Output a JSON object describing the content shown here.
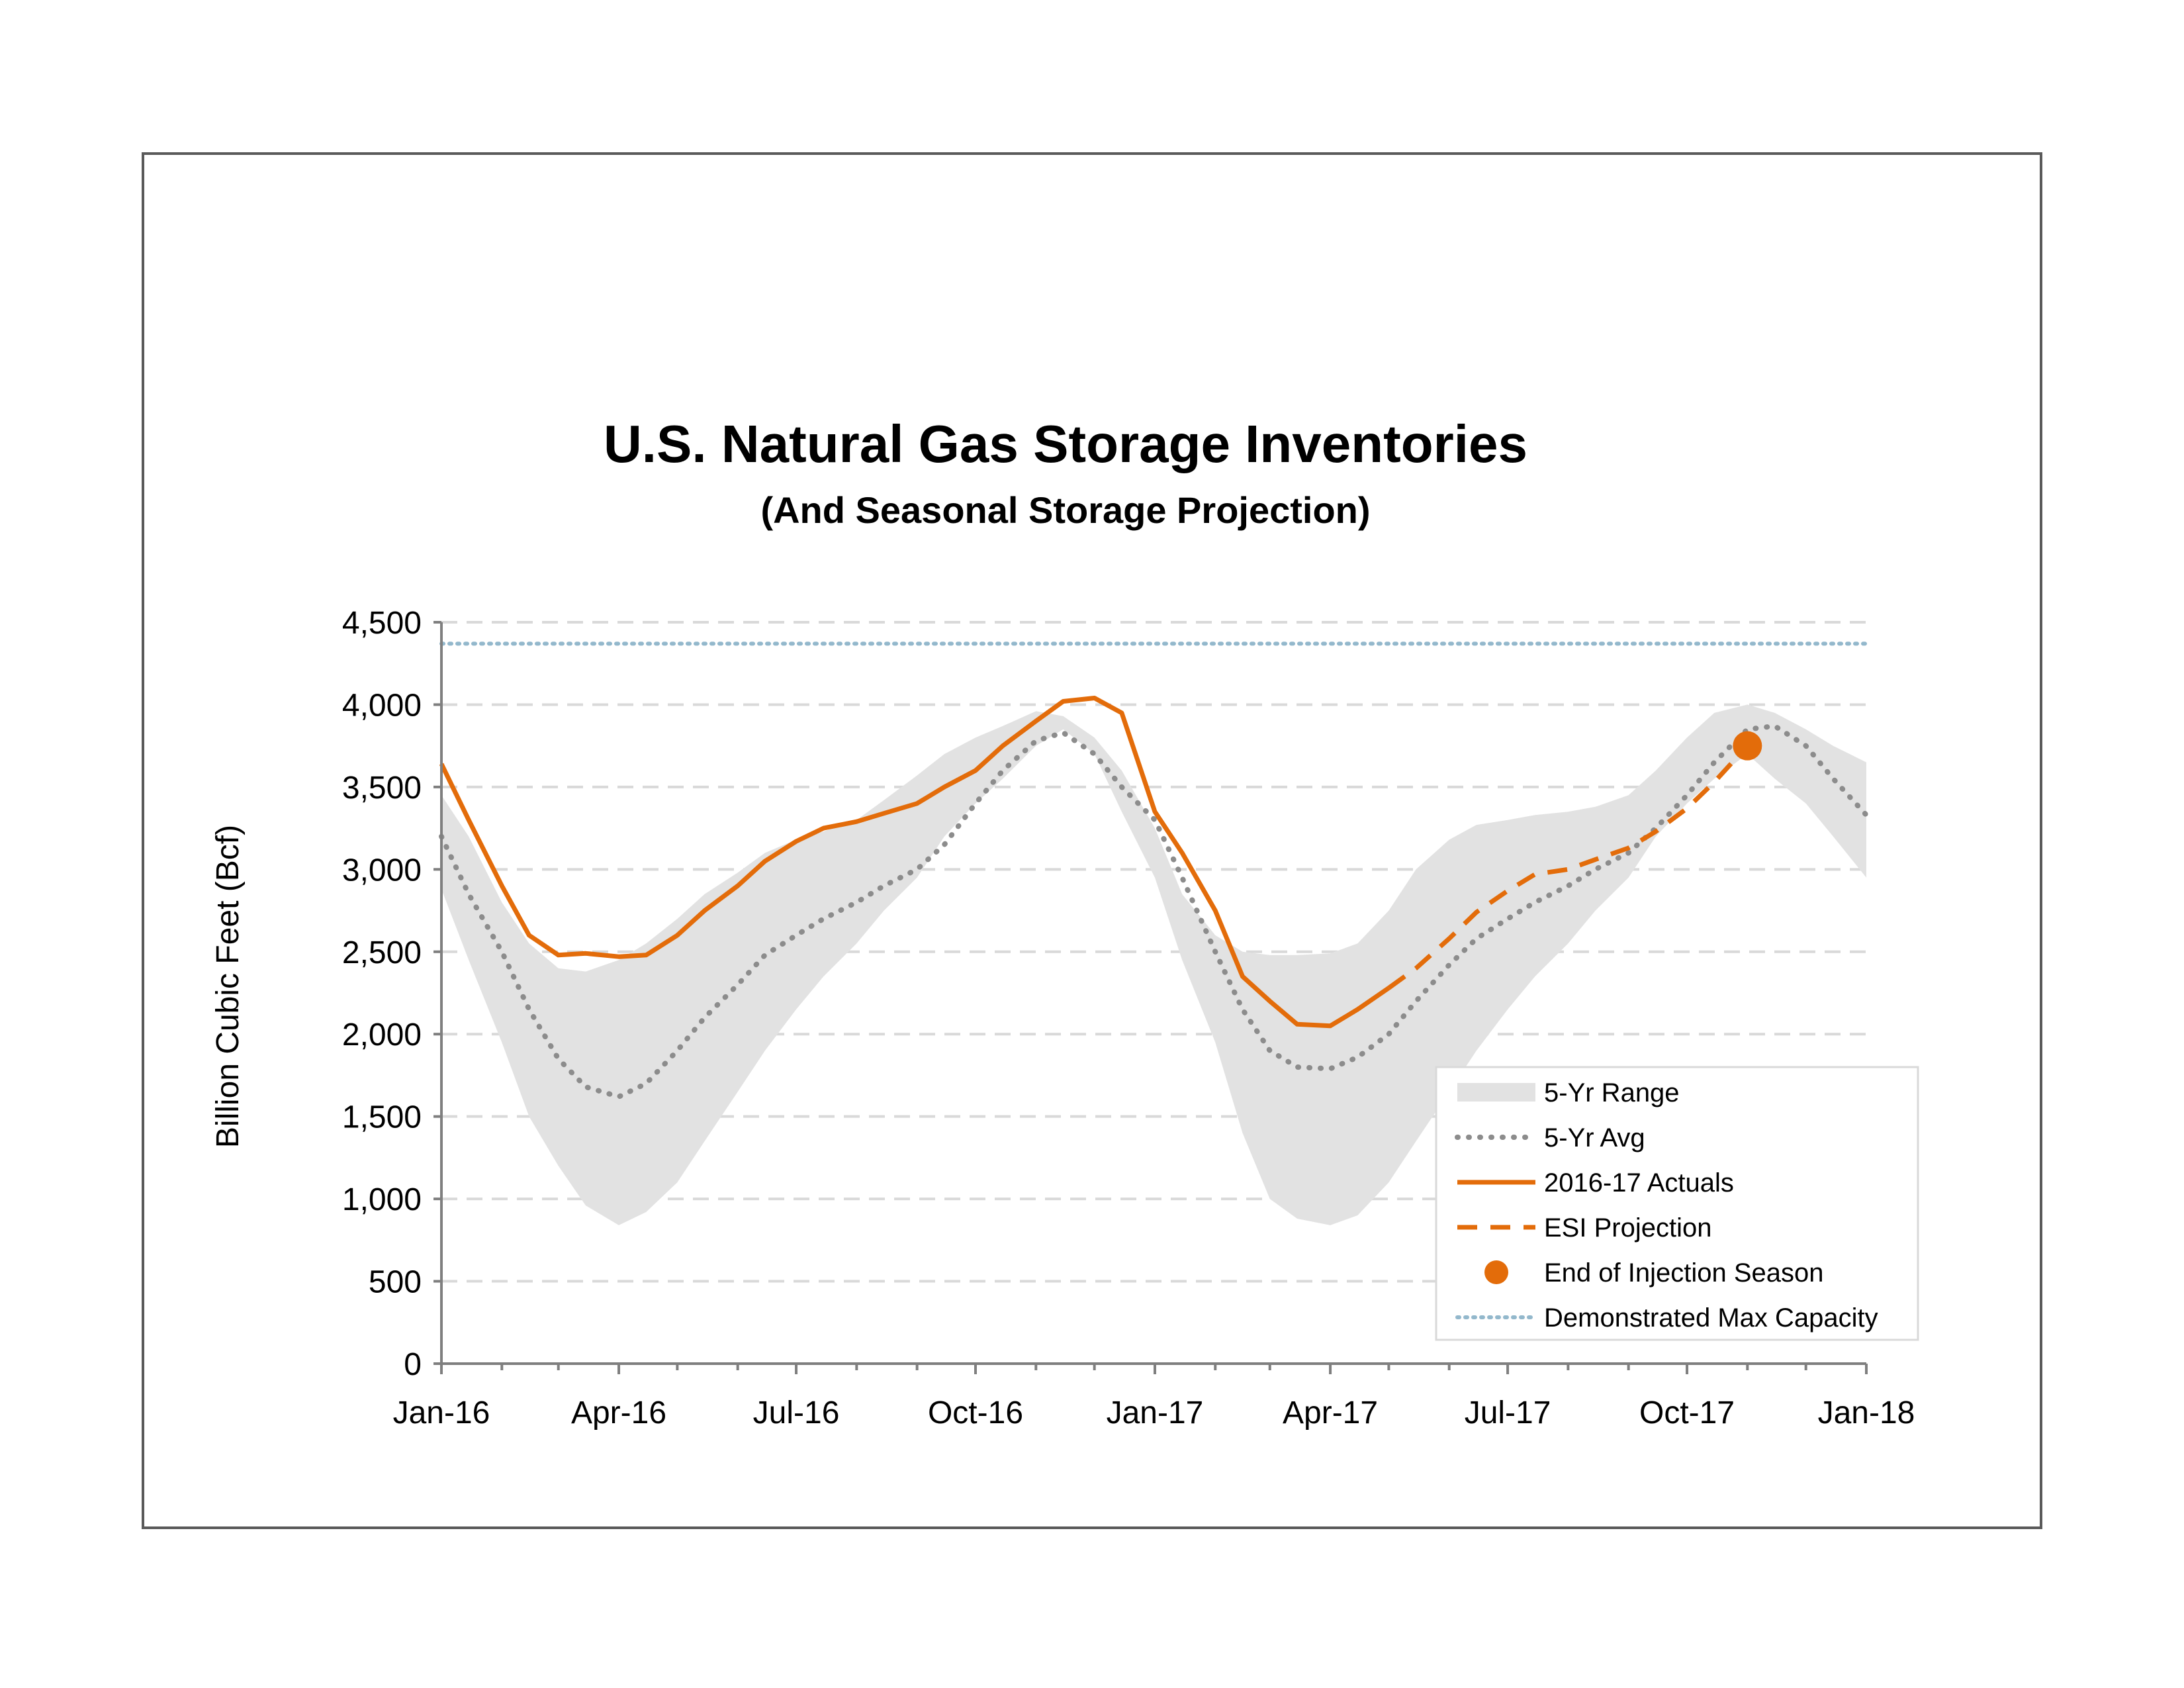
{
  "chart_data": {
    "type": "line",
    "title": "U.S. Natural Gas Storage Inventories",
    "subtitle": "(And Seasonal Storage Projection)",
    "ylabel": "Billion Cubic Feet (Bcf)",
    "xlabel": "",
    "ylim": [
      0,
      4500
    ],
    "y_ticks": [
      0,
      500,
      1000,
      1500,
      2000,
      2500,
      3000,
      3500,
      4000,
      4500
    ],
    "y_tick_labels": [
      "0",
      "500",
      "1,000",
      "1,500",
      "2,000",
      "2,500",
      "3,000",
      "3,500",
      "4,000",
      "4,500"
    ],
    "x_range": [
      "2016-01-01",
      "2018-01-01"
    ],
    "x_ticks": [
      "2016-01-01",
      "2016-04-01",
      "2016-07-01",
      "2016-10-01",
      "2017-01-01",
      "2017-04-01",
      "2017-07-01",
      "2017-10-01",
      "2018-01-01"
    ],
    "x_tick_labels": [
      "Jan-16",
      "Apr-16",
      "Jul-16",
      "Oct-16",
      "Jan-17",
      "Apr-17",
      "Jul-17",
      "Oct-17",
      "Jan-18"
    ],
    "grid": "horizontal dashed",
    "legend_position": "bottom-right",
    "series": [
      {
        "name": "5-Yr Range",
        "kind": "band",
        "color": "#e2e2e2",
        "x": [
          "2016-01-01",
          "2016-01-15",
          "2016-02-01",
          "2016-02-15",
          "2016-03-01",
          "2016-03-15",
          "2016-04-01",
          "2016-04-15",
          "2016-05-01",
          "2016-05-15",
          "2016-06-01",
          "2016-06-15",
          "2016-07-01",
          "2016-07-15",
          "2016-08-01",
          "2016-08-15",
          "2016-09-01",
          "2016-09-15",
          "2016-10-01",
          "2016-10-15",
          "2016-11-01",
          "2016-11-15",
          "2016-12-01",
          "2016-12-15",
          "2017-01-01",
          "2017-01-15",
          "2017-02-01",
          "2017-02-15",
          "2017-03-01",
          "2017-03-15",
          "2017-04-01",
          "2017-04-15",
          "2017-05-01",
          "2017-05-15",
          "2017-06-01",
          "2017-06-15",
          "2017-07-01",
          "2017-07-15",
          "2017-08-01",
          "2017-08-15",
          "2017-09-01",
          "2017-09-15",
          "2017-10-01",
          "2017-10-15",
          "2017-11-01",
          "2017-11-15",
          "2017-12-01",
          "2017-12-15",
          "2018-01-01"
        ],
        "low": [
          2880,
          2450,
          1950,
          1500,
          1200,
          960,
          840,
          920,
          1100,
          1350,
          1650,
          1900,
          2150,
          2350,
          2550,
          2750,
          2950,
          3200,
          3400,
          3550,
          3750,
          3850,
          3700,
          3350,
          2950,
          2450,
          1950,
          1400,
          1000,
          880,
          840,
          900,
          1100,
          1350,
          1650,
          1900,
          2150,
          2350,
          2550,
          2750,
          2950,
          3200,
          3400,
          3550,
          3700,
          3550,
          3400,
          3200,
          2950
        ],
        "high": [
          3450,
          3200,
          2800,
          2550,
          2400,
          2380,
          2450,
          2550,
          2700,
          2850,
          2980,
          3100,
          3180,
          3230,
          3300,
          3420,
          3570,
          3700,
          3800,
          3870,
          3960,
          3930,
          3800,
          3600,
          3250,
          2850,
          2600,
          2500,
          2480,
          2480,
          2490,
          2550,
          2750,
          3000,
          3180,
          3270,
          3300,
          3330,
          3350,
          3380,
          3450,
          3600,
          3800,
          3950,
          4000,
          3950,
          3850,
          3750,
          3650
        ]
      },
      {
        "name": "5-Yr Avg",
        "kind": "line",
        "style": "dotted",
        "color": "#8c8c8c",
        "x": [
          "2016-01-01",
          "2016-01-15",
          "2016-02-01",
          "2016-02-15",
          "2016-03-01",
          "2016-03-15",
          "2016-04-01",
          "2016-04-15",
          "2016-05-01",
          "2016-05-15",
          "2016-06-01",
          "2016-06-15",
          "2016-07-01",
          "2016-07-15",
          "2016-08-01",
          "2016-08-15",
          "2016-09-01",
          "2016-09-15",
          "2016-10-01",
          "2016-10-15",
          "2016-11-01",
          "2016-11-15",
          "2016-12-01",
          "2016-12-15",
          "2017-01-01",
          "2017-01-15",
          "2017-02-01",
          "2017-02-15",
          "2017-03-01",
          "2017-03-15",
          "2017-04-01",
          "2017-04-15",
          "2017-05-01",
          "2017-05-15",
          "2017-06-01",
          "2017-06-15",
          "2017-07-01",
          "2017-07-15",
          "2017-08-01",
          "2017-08-15",
          "2017-09-01",
          "2017-09-15",
          "2017-10-01",
          "2017-10-15",
          "2017-11-01",
          "2017-11-15",
          "2017-12-01",
          "2017-12-15",
          "2018-01-01"
        ],
        "values": [
          3200,
          2850,
          2500,
          2150,
          1850,
          1680,
          1620,
          1700,
          1900,
          2100,
          2300,
          2480,
          2600,
          2700,
          2800,
          2900,
          3000,
          3150,
          3400,
          3600,
          3780,
          3830,
          3700,
          3500,
          3300,
          2950,
          2500,
          2150,
          1900,
          1800,
          1790,
          1860,
          2000,
          2200,
          2420,
          2580,
          2700,
          2800,
          2900,
          3000,
          3100,
          3250,
          3450,
          3650,
          3850,
          3870,
          3750,
          3550,
          3330
        ]
      },
      {
        "name": "2016-17 Actuals",
        "kind": "line",
        "style": "solid",
        "color": "#e36c0a",
        "x": [
          "2016-01-01",
          "2016-01-15",
          "2016-02-01",
          "2016-02-15",
          "2016-03-01",
          "2016-03-15",
          "2016-04-01",
          "2016-04-15",
          "2016-05-01",
          "2016-05-15",
          "2016-06-01",
          "2016-06-15",
          "2016-07-01",
          "2016-07-15",
          "2016-08-01",
          "2016-08-15",
          "2016-09-01",
          "2016-09-15",
          "2016-10-01",
          "2016-10-15",
          "2016-11-01",
          "2016-11-15",
          "2016-12-01",
          "2016-12-15",
          "2017-01-01",
          "2017-01-15",
          "2017-02-01",
          "2017-02-15",
          "2017-03-01",
          "2017-03-15",
          "2017-04-01",
          "2017-04-15",
          "2017-05-01"
        ],
        "values": [
          3640,
          3300,
          2900,
          2600,
          2480,
          2490,
          2470,
          2480,
          2600,
          2750,
          2900,
          3050,
          3170,
          3250,
          3290,
          3340,
          3400,
          3500,
          3600,
          3750,
          3900,
          4020,
          4040,
          3950,
          3350,
          3100,
          2750,
          2350,
          2200,
          2060,
          2050,
          2150,
          2280
        ]
      },
      {
        "name": "ESI Projection",
        "kind": "line",
        "style": "dashed",
        "color": "#e36c0a",
        "x": [
          "2017-05-01",
          "2017-05-15",
          "2017-06-01",
          "2017-06-15",
          "2017-07-01",
          "2017-07-15",
          "2017-08-01",
          "2017-08-15",
          "2017-09-01",
          "2017-09-15",
          "2017-10-01",
          "2017-10-15",
          "2017-11-01"
        ],
        "values": [
          2280,
          2400,
          2580,
          2740,
          2870,
          2970,
          3000,
          3060,
          3130,
          3230,
          3370,
          3530,
          3750
        ]
      },
      {
        "name": "End of Injection Season",
        "kind": "point",
        "color": "#e36c0a",
        "x": [
          "2017-11-01"
        ],
        "values": [
          3750
        ]
      },
      {
        "name": "Demonstrated Max Capacity",
        "kind": "hline",
        "style": "dotted",
        "color": "#93b8cc",
        "value": 4370
      }
    ]
  }
}
